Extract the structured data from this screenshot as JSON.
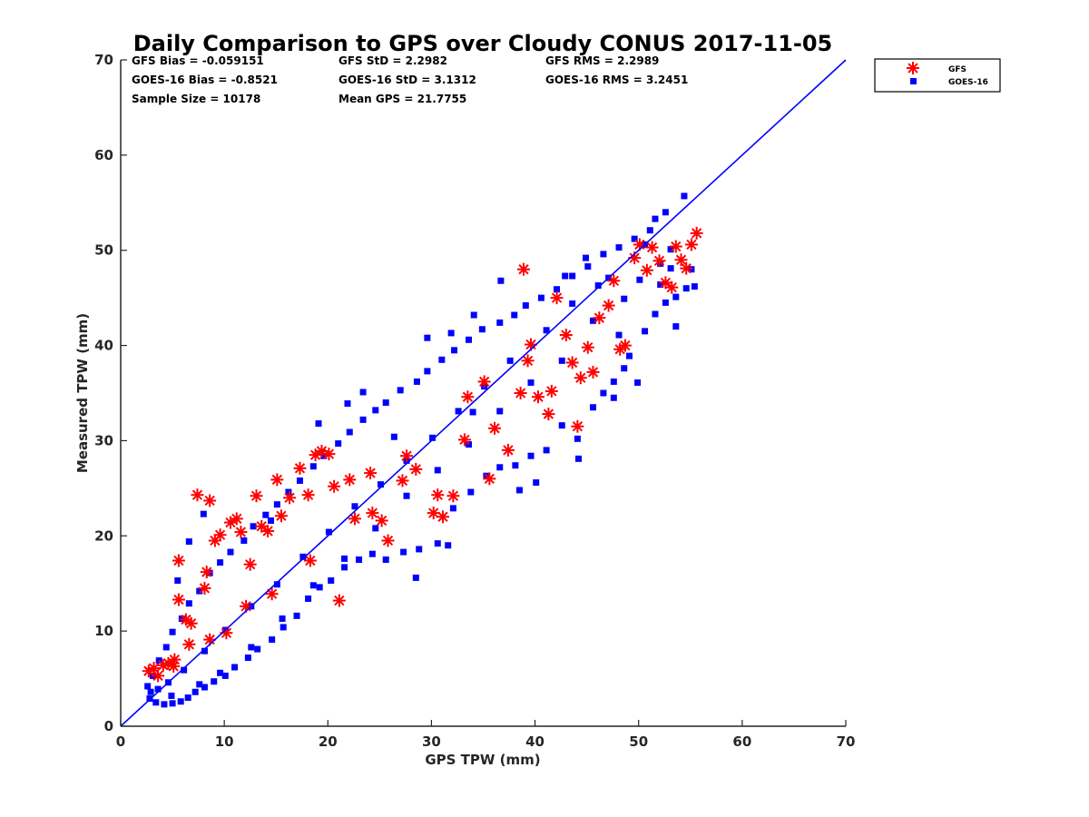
{
  "chart_data": {
    "type": "scatter",
    "title": "Daily Comparison to GPS over Cloudy CONUS 2017-11-05",
    "xlabel": "GPS TPW (mm)",
    "ylabel": "Measured TPW (mm)",
    "xlim": [
      0,
      70
    ],
    "ylim": [
      0,
      70
    ],
    "xticks": [
      "0",
      "10",
      "20",
      "30",
      "40",
      "50",
      "60",
      "70"
    ],
    "yticks": [
      "0",
      "10",
      "20",
      "30",
      "40",
      "50",
      "60",
      "70"
    ],
    "grid": false,
    "legend_position": "outside-top-right",
    "stats": [
      "GFS Bias = -0.059151",
      "GFS StD = 2.2982",
      "GFS RMS = 2.2989",
      "GOES-16 Bias = -0.8521",
      "GOES-16 StD = 3.1312",
      "GOES-16 RMS = 3.2451",
      "Sample Size = 10178",
      "Mean GPS = 21.7755"
    ],
    "reference_line": {
      "x": [
        0,
        70
      ],
      "y": [
        0,
        70
      ],
      "color": "#0000ff"
    },
    "series": [
      {
        "name": "GFS",
        "marker": "asterisk",
        "color": "#ff0000",
        "points": [
          [
            2.7,
            5.8
          ],
          [
            3.2,
            6.1
          ],
          [
            3.6,
            5.3
          ],
          [
            4.1,
            6.4
          ],
          [
            4.6,
            6.6
          ],
          [
            5.2,
            7.0
          ],
          [
            5.6,
            13.3
          ],
          [
            5.6,
            17.4
          ],
          [
            6.3,
            11.2
          ],
          [
            6.8,
            10.8
          ],
          [
            7.4,
            24.3
          ],
          [
            8.1,
            14.5
          ],
          [
            8.6,
            23.7
          ],
          [
            8.3,
            16.2
          ],
          [
            9.1,
            19.5
          ],
          [
            9.6,
            20.1
          ],
          [
            10.6,
            21.4
          ],
          [
            11.2,
            21.8
          ],
          [
            11.6,
            20.4
          ],
          [
            12.5,
            17.0
          ],
          [
            13.1,
            24.2
          ],
          [
            13.6,
            21.0
          ],
          [
            14.2,
            20.5
          ],
          [
            15.1,
            25.9
          ],
          [
            15.5,
            22.1
          ],
          [
            16.3,
            24.0
          ],
          [
            17.3,
            27.1
          ],
          [
            18.1,
            24.3
          ],
          [
            18.8,
            28.5
          ],
          [
            19.4,
            28.9
          ],
          [
            20.1,
            28.6
          ],
          [
            20.6,
            25.2
          ],
          [
            21.1,
            13.2
          ],
          [
            22.1,
            25.9
          ],
          [
            24.3,
            22.4
          ],
          [
            25.2,
            21.6
          ],
          [
            25.8,
            19.5
          ],
          [
            27.2,
            25.8
          ],
          [
            28.5,
            27.0
          ],
          [
            30.2,
            22.4
          ],
          [
            30.6,
            24.3
          ],
          [
            31.1,
            22.0
          ],
          [
            32.1,
            24.2
          ],
          [
            33.5,
            34.6
          ],
          [
            35.6,
            26.0
          ],
          [
            36.1,
            31.3
          ],
          [
            37.4,
            29.0
          ],
          [
            38.6,
            35.0
          ],
          [
            38.9,
            48.0
          ],
          [
            39.3,
            38.4
          ],
          [
            40.3,
            34.6
          ],
          [
            41.6,
            35.2
          ],
          [
            41.3,
            32.8
          ],
          [
            42.1,
            45.0
          ],
          [
            43.0,
            41.1
          ],
          [
            43.6,
            38.2
          ],
          [
            44.1,
            31.5
          ],
          [
            44.4,
            36.6
          ],
          [
            45.1,
            39.8
          ],
          [
            45.6,
            37.2
          ],
          [
            46.2,
            42.9
          ],
          [
            47.1,
            44.2
          ],
          [
            47.6,
            46.8
          ],
          [
            48.2,
            39.6
          ],
          [
            48.7,
            40.0
          ],
          [
            49.6,
            49.2
          ],
          [
            50.1,
            50.6
          ],
          [
            50.8,
            47.9
          ],
          [
            51.3,
            50.3
          ],
          [
            52.0,
            48.9
          ],
          [
            52.6,
            46.6
          ],
          [
            53.2,
            46.1
          ],
          [
            53.6,
            50.4
          ],
          [
            54.1,
            49.0
          ],
          [
            54.6,
            48.1
          ],
          [
            55.1,
            50.6
          ],
          [
            55.6,
            51.8
          ],
          [
            39.6,
            40.1
          ],
          [
            35.1,
            36.2
          ],
          [
            33.2,
            30.1
          ],
          [
            27.6,
            28.4
          ],
          [
            22.6,
            21.8
          ],
          [
            14.6,
            13.9
          ],
          [
            10.2,
            9.8
          ],
          [
            8.6,
            9.1
          ],
          [
            6.6,
            8.6
          ],
          [
            5.1,
            6.3
          ],
          [
            12.1,
            12.6
          ],
          [
            18.3,
            17.4
          ],
          [
            24.1,
            26.6
          ]
        ]
      },
      {
        "name": "GOES-16",
        "marker": "square",
        "color": "#0000ff",
        "points": [
          [
            2.8,
            2.9
          ],
          [
            3.4,
            2.5
          ],
          [
            4.2,
            2.3
          ],
          [
            5.0,
            2.4
          ],
          [
            5.8,
            2.6
          ],
          [
            6.5,
            3.0
          ],
          [
            7.2,
            3.6
          ],
          [
            8.1,
            4.1
          ],
          [
            9.0,
            4.7
          ],
          [
            10.1,
            5.3
          ],
          [
            11.0,
            6.2
          ],
          [
            12.3,
            7.2
          ],
          [
            13.2,
            8.1
          ],
          [
            14.6,
            9.1
          ],
          [
            15.7,
            10.4
          ],
          [
            17.0,
            11.6
          ],
          [
            18.1,
            13.4
          ],
          [
            19.2,
            14.6
          ],
          [
            20.3,
            15.3
          ],
          [
            21.6,
            16.7
          ],
          [
            23.0,
            17.5
          ],
          [
            24.3,
            18.1
          ],
          [
            25.6,
            17.5
          ],
          [
            27.3,
            18.3
          ],
          [
            28.8,
            18.6
          ],
          [
            30.6,
            19.2
          ],
          [
            32.1,
            22.9
          ],
          [
            33.8,
            24.6
          ],
          [
            35.3,
            26.3
          ],
          [
            36.6,
            27.2
          ],
          [
            38.1,
            27.4
          ],
          [
            39.6,
            28.4
          ],
          [
            41.1,
            29.0
          ],
          [
            42.6,
            31.6
          ],
          [
            44.2,
            28.1
          ],
          [
            45.6,
            33.5
          ],
          [
            46.6,
            35.0
          ],
          [
            47.6,
            36.2
          ],
          [
            48.6,
            37.6
          ],
          [
            49.1,
            38.9
          ],
          [
            50.6,
            41.5
          ],
          [
            51.6,
            43.3
          ],
          [
            52.6,
            44.5
          ],
          [
            53.6,
            45.1
          ],
          [
            54.6,
            46.0
          ],
          [
            55.1,
            48.0
          ],
          [
            55.4,
            46.2
          ],
          [
            54.4,
            55.7
          ],
          [
            52.6,
            54.0
          ],
          [
            51.6,
            53.3
          ],
          [
            51.1,
            52.1
          ],
          [
            49.6,
            51.2
          ],
          [
            48.1,
            50.3
          ],
          [
            46.6,
            49.6
          ],
          [
            45.1,
            48.3
          ],
          [
            43.6,
            47.3
          ],
          [
            42.1,
            45.9
          ],
          [
            40.6,
            45.0
          ],
          [
            39.1,
            44.2
          ],
          [
            38.0,
            43.2
          ],
          [
            36.6,
            42.4
          ],
          [
            34.9,
            41.7
          ],
          [
            33.6,
            40.6
          ],
          [
            32.2,
            39.5
          ],
          [
            31.0,
            38.5
          ],
          [
            29.6,
            37.3
          ],
          [
            28.6,
            36.2
          ],
          [
            27.0,
            35.3
          ],
          [
            25.6,
            34.0
          ],
          [
            24.6,
            33.2
          ],
          [
            23.4,
            32.2
          ],
          [
            22.1,
            30.9
          ],
          [
            21.0,
            29.7
          ],
          [
            19.6,
            28.4
          ],
          [
            18.6,
            27.3
          ],
          [
            17.3,
            25.8
          ],
          [
            16.2,
            24.6
          ],
          [
            15.1,
            23.3
          ],
          [
            14.0,
            22.2
          ],
          [
            12.8,
            21.0
          ],
          [
            11.9,
            19.5
          ],
          [
            10.6,
            18.3
          ],
          [
            9.6,
            17.2
          ],
          [
            8.6,
            16.1
          ],
          [
            7.6,
            14.2
          ],
          [
            6.6,
            12.9
          ],
          [
            5.9,
            11.3
          ],
          [
            5.0,
            9.9
          ],
          [
            4.4,
            8.3
          ],
          [
            3.7,
            6.9
          ],
          [
            3.1,
            5.3
          ],
          [
            2.6,
            4.2
          ],
          [
            2.9,
            3.6
          ],
          [
            4.9,
            3.2
          ],
          [
            7.6,
            4.4
          ],
          [
            9.6,
            5.6
          ],
          [
            12.6,
            8.3
          ],
          [
            15.6,
            11.3
          ],
          [
            18.6,
            14.8
          ],
          [
            21.6,
            17.6
          ],
          [
            24.6,
            20.8
          ],
          [
            27.6,
            24.2
          ],
          [
            30.6,
            26.9
          ],
          [
            33.6,
            29.6
          ],
          [
            36.6,
            33.1
          ],
          [
            39.6,
            36.1
          ],
          [
            42.6,
            38.4
          ],
          [
            45.6,
            42.6
          ],
          [
            48.6,
            44.9
          ],
          [
            50.1,
            46.9
          ],
          [
            52.1,
            48.6
          ],
          [
            53.1,
            50.1
          ],
          [
            46.1,
            46.3
          ],
          [
            43.6,
            44.4
          ],
          [
            41.1,
            41.6
          ],
          [
            37.6,
            38.4
          ],
          [
            35.1,
            35.7
          ],
          [
            32.6,
            33.1
          ],
          [
            30.1,
            30.3
          ],
          [
            27.6,
            27.9
          ],
          [
            25.1,
            25.4
          ],
          [
            22.6,
            23.1
          ],
          [
            20.1,
            20.4
          ],
          [
            17.6,
            17.8
          ],
          [
            15.1,
            14.9
          ],
          [
            12.6,
            12.6
          ],
          [
            10.1,
            10.1
          ],
          [
            8.1,
            7.9
          ],
          [
            6.1,
            5.9
          ],
          [
            4.6,
            4.6
          ],
          [
            3.6,
            3.9
          ],
          [
            5.5,
            15.3
          ],
          [
            6.6,
            19.4
          ],
          [
            8.0,
            22.3
          ],
          [
            14.5,
            21.6
          ],
          [
            28.5,
            15.6
          ],
          [
            31.6,
            19.0
          ],
          [
            34.0,
            33.0
          ],
          [
            38.5,
            24.8
          ],
          [
            40.1,
            25.6
          ],
          [
            44.1,
            30.2
          ],
          [
            47.6,
            34.5
          ],
          [
            49.9,
            36.1
          ],
          [
            53.6,
            42.0
          ],
          [
            52.1,
            46.4
          ],
          [
            48.1,
            41.1
          ],
          [
            26.4,
            30.4
          ],
          [
            21.9,
            33.9
          ],
          [
            19.1,
            31.8
          ],
          [
            23.4,
            35.1
          ],
          [
            29.6,
            40.8
          ],
          [
            31.9,
            41.3
          ],
          [
            34.1,
            43.2
          ],
          [
            36.7,
            46.8
          ],
          [
            42.9,
            47.3
          ],
          [
            44.9,
            49.2
          ],
          [
            47.1,
            47.1
          ],
          [
            50.6,
            50.6
          ],
          [
            53.1,
            48.1
          ]
        ]
      }
    ]
  }
}
